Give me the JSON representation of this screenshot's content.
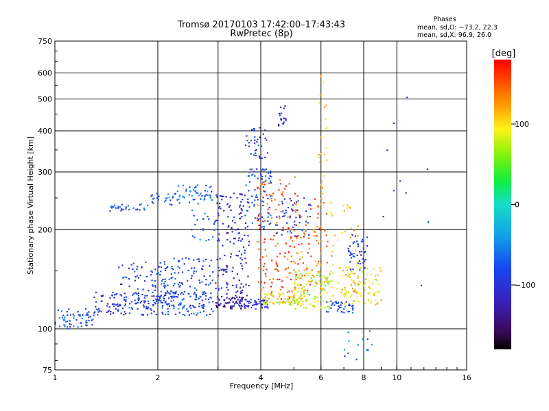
{
  "header": {
    "title_line1": "Tromsø 20170103 17:42:00–17:43:43",
    "title_line2": "RwPretec (8p)",
    "phases_label": "Phases",
    "phases_line1": "mean, sd,O: −73.2, 22.3",
    "phases_line2": "mean, sd,X:  96.9, 26.0"
  },
  "colorbar": {
    "unit_label": "[deg]",
    "ticks": [
      {
        "value": 100,
        "label": "100"
      },
      {
        "value": 0,
        "label": "0"
      },
      {
        "value": -100,
        "label": "−100"
      }
    ],
    "range": [
      -180,
      180
    ]
  },
  "chart_data": {
    "type": "scatter",
    "title": "Tromsø 20170103 17:42:00–17:43:43",
    "subtitle": "RwPretec (8p)",
    "xlabel": "Frequency [MHz]",
    "ylabel": "Stationary phase Virtual Height [km]",
    "xscale": "log",
    "yscale": "log",
    "xlim": [
      1,
      16
    ],
    "ylim": [
      75,
      750
    ],
    "grid": true,
    "xticks": [
      {
        "value": 1,
        "label": "1"
      },
      {
        "value": 2,
        "label": "2"
      },
      {
        "value": 4,
        "label": "4"
      },
      {
        "value": 6,
        "label": "6"
      },
      {
        "value": 8,
        "label": "8"
      },
      {
        "value": 10,
        "label": "10"
      },
      {
        "value": 16,
        "label": "16"
      }
    ],
    "xgrid": [
      2,
      3,
      4,
      6,
      8,
      10
    ],
    "yticks": [
      {
        "value": 75,
        "label": "75"
      },
      {
        "value": 100,
        "label": "100"
      },
      {
        "value": 200,
        "label": "200"
      },
      {
        "value": 300,
        "label": "300"
      },
      {
        "value": 400,
        "label": "400"
      },
      {
        "value": 500,
        "label": "500"
      },
      {
        "value": 600,
        "label": "600"
      },
      {
        "value": 750,
        "label": "750"
      }
    ],
    "ygrid": [
      100,
      200,
      300,
      400,
      500,
      600
    ],
    "clusters": [
      {
        "x": [
          1.0,
          1.3
        ],
        "y": [
          100,
          115
        ],
        "phase": -75,
        "n": 60
      },
      {
        "x": [
          1.3,
          2.0
        ],
        "y": [
          110,
          130
        ],
        "phase": -95,
        "n": 110
      },
      {
        "x": [
          1.5,
          2.3
        ],
        "y": [
          115,
          160
        ],
        "phase": -85,
        "n": 90
      },
      {
        "x": [
          1.45,
          1.9
        ],
        "y": [
          228,
          240
        ],
        "phase": -80,
        "n": 28
      },
      {
        "x": [
          1.9,
          2.25
        ],
        "y": [
          238,
          258
        ],
        "phase": -70,
        "n": 22
      },
      {
        "x": [
          2.25,
          2.9
        ],
        "y": [
          240,
          275
        ],
        "phase": -60,
        "n": 55
      },
      {
        "x": [
          2.0,
          2.9
        ],
        "y": [
          110,
          130
        ],
        "phase": -80,
        "n": 110
      },
      {
        "x": [
          2.0,
          2.9
        ],
        "y": [
          125,
          165
        ],
        "phase": -85,
        "n": 90
      },
      {
        "x": [
          2.5,
          2.95
        ],
        "y": [
          185,
          230
        ],
        "phase": -70,
        "n": 22
      },
      {
        "x": [
          2.95,
          3.6
        ],
        "y": [
          115,
          125
        ],
        "phase": -130,
        "n": 60
      },
      {
        "x": [
          2.95,
          3.7
        ],
        "y": [
          125,
          260
        ],
        "phase": -115,
        "n": 150
      },
      {
        "x": [
          3.4,
          4.2
        ],
        "y": [
          115,
          123
        ],
        "phase": -100,
        "n": 55
      },
      {
        "x": [
          3.6,
          4.3
        ],
        "y": [
          200,
          310
        ],
        "phase": -80,
        "n": 80
      },
      {
        "x": [
          3.6,
          4.2
        ],
        "y": [
          330,
          410
        ],
        "phase": -95,
        "n": 35
      },
      {
        "x": [
          3.9,
          5.2
        ],
        "y": [
          120,
          290
        ],
        "phase": 150,
        "n": 150
      },
      {
        "x": [
          4.0,
          5.3
        ],
        "y": [
          118,
          128
        ],
        "phase": 95,
        "n": 70
      },
      {
        "x": [
          4.4,
          5.6
        ],
        "y": [
          190,
          250
        ],
        "phase": -95,
        "n": 55
      },
      {
        "x": [
          4.5,
          4.75
        ],
        "y": [
          410,
          480
        ],
        "phase": -110,
        "n": 18
      },
      {
        "x": [
          5.0,
          6.3
        ],
        "y": [
          130,
          250
        ],
        "phase": 140,
        "n": 90
      },
      {
        "x": [
          5.0,
          6.5
        ],
        "y": [
          115,
          150
        ],
        "phase": 80,
        "n": 110
      },
      {
        "x": [
          5.9,
          6.25
        ],
        "y": [
          250,
          600
        ],
        "phase": 110,
        "n": 25
      },
      {
        "x": [
          6.2,
          7.5
        ],
        "y": [
          112,
          122
        ],
        "phase": -80,
        "n": 40
      },
      {
        "x": [
          6.4,
          7.8
        ],
        "y": [
          125,
          250
        ],
        "phase": 110,
        "n": 45
      },
      {
        "x": [
          7.0,
          9.0
        ],
        "y": [
          118,
          155
        ],
        "phase": 95,
        "n": 90
      },
      {
        "x": [
          7.2,
          8.2
        ],
        "y": [
          150,
          195
        ],
        "phase": -95,
        "n": 45
      },
      {
        "x": [
          7.0,
          8.5
        ],
        "y": [
          80,
          100
        ],
        "phase": -60,
        "n": 14
      },
      {
        "x": [
          9.0,
          12.5
        ],
        "y": [
          130,
          600
        ],
        "phase": -100,
        "n": 10
      }
    ]
  }
}
